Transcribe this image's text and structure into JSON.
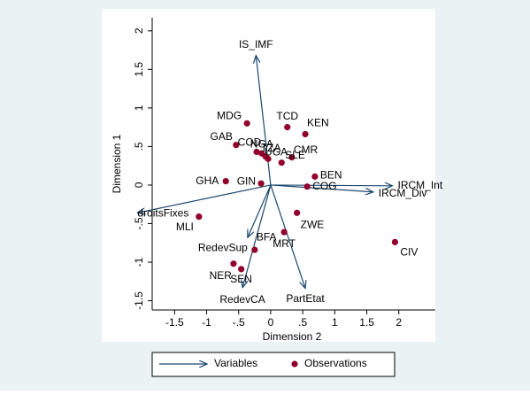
{
  "chart_data": {
    "type": "biplot",
    "xlabel": "Dimension 2",
    "ylabel": "Dimension 1",
    "xlim": [
      -1.85,
      2.57
    ],
    "ylim": [
      -1.62,
      2.17
    ],
    "xticks": [
      -1.5,
      -1,
      {
        "value": -0.5,
        "label": "-.5"
      },
      0,
      {
        "value": 0.5,
        "label": ".5"
      },
      1,
      1.5,
      2
    ],
    "yticks": [
      -1.5,
      -1,
      {
        "value": -0.5,
        "label": "-.5"
      },
      0,
      {
        "value": 0.5,
        "label": ".5"
      },
      1,
      1.5,
      2
    ],
    "variables": {
      "name": "Variables",
      "color": "#1a476f",
      "labels": [
        "IS_IMF",
        "IRCM_Int",
        "IRCM_Div",
        "droitsFixes",
        "RedevSup",
        "RedevCA",
        "PartEtat"
      ],
      "x": [
        -0.23,
        1.9,
        1.6,
        -2.08,
        -0.36,
        -0.44,
        0.54
      ],
      "y": [
        1.68,
        -0.01,
        -0.09,
        -0.36,
        -0.68,
        -1.33,
        -1.34
      ]
    },
    "observations": {
      "name": "Observations",
      "color": "#90002a",
      "labels": [
        "MDG",
        "TCD",
        "KEN",
        "GAB",
        "COD",
        "NGA",
        "TZA",
        "UGA",
        "CMR",
        "SLE",
        "BEN",
        "COG",
        "GHA",
        "GIN",
        "MLI",
        "ZWE",
        "MRT",
        "CIV",
        "BFA",
        "NER",
        "SEN"
      ],
      "x": [
        -0.37,
        0.26,
        0.54,
        -0.54,
        -0.22,
        -0.14,
        -0.08,
        -0.04,
        0.33,
        0.17,
        0.69,
        0.57,
        -0.7,
        -0.15,
        -1.12,
        0.41,
        0.21,
        1.94,
        -0.25,
        -0.58,
        -0.46
      ],
      "y": [
        0.8,
        0.75,
        0.66,
        0.52,
        0.43,
        0.41,
        0.37,
        0.34,
        0.36,
        0.29,
        0.11,
        -0.02,
        0.05,
        0.02,
        -0.41,
        -0.36,
        -0.61,
        -0.74,
        -0.84,
        -1.02,
        -1.09
      ]
    }
  }
}
